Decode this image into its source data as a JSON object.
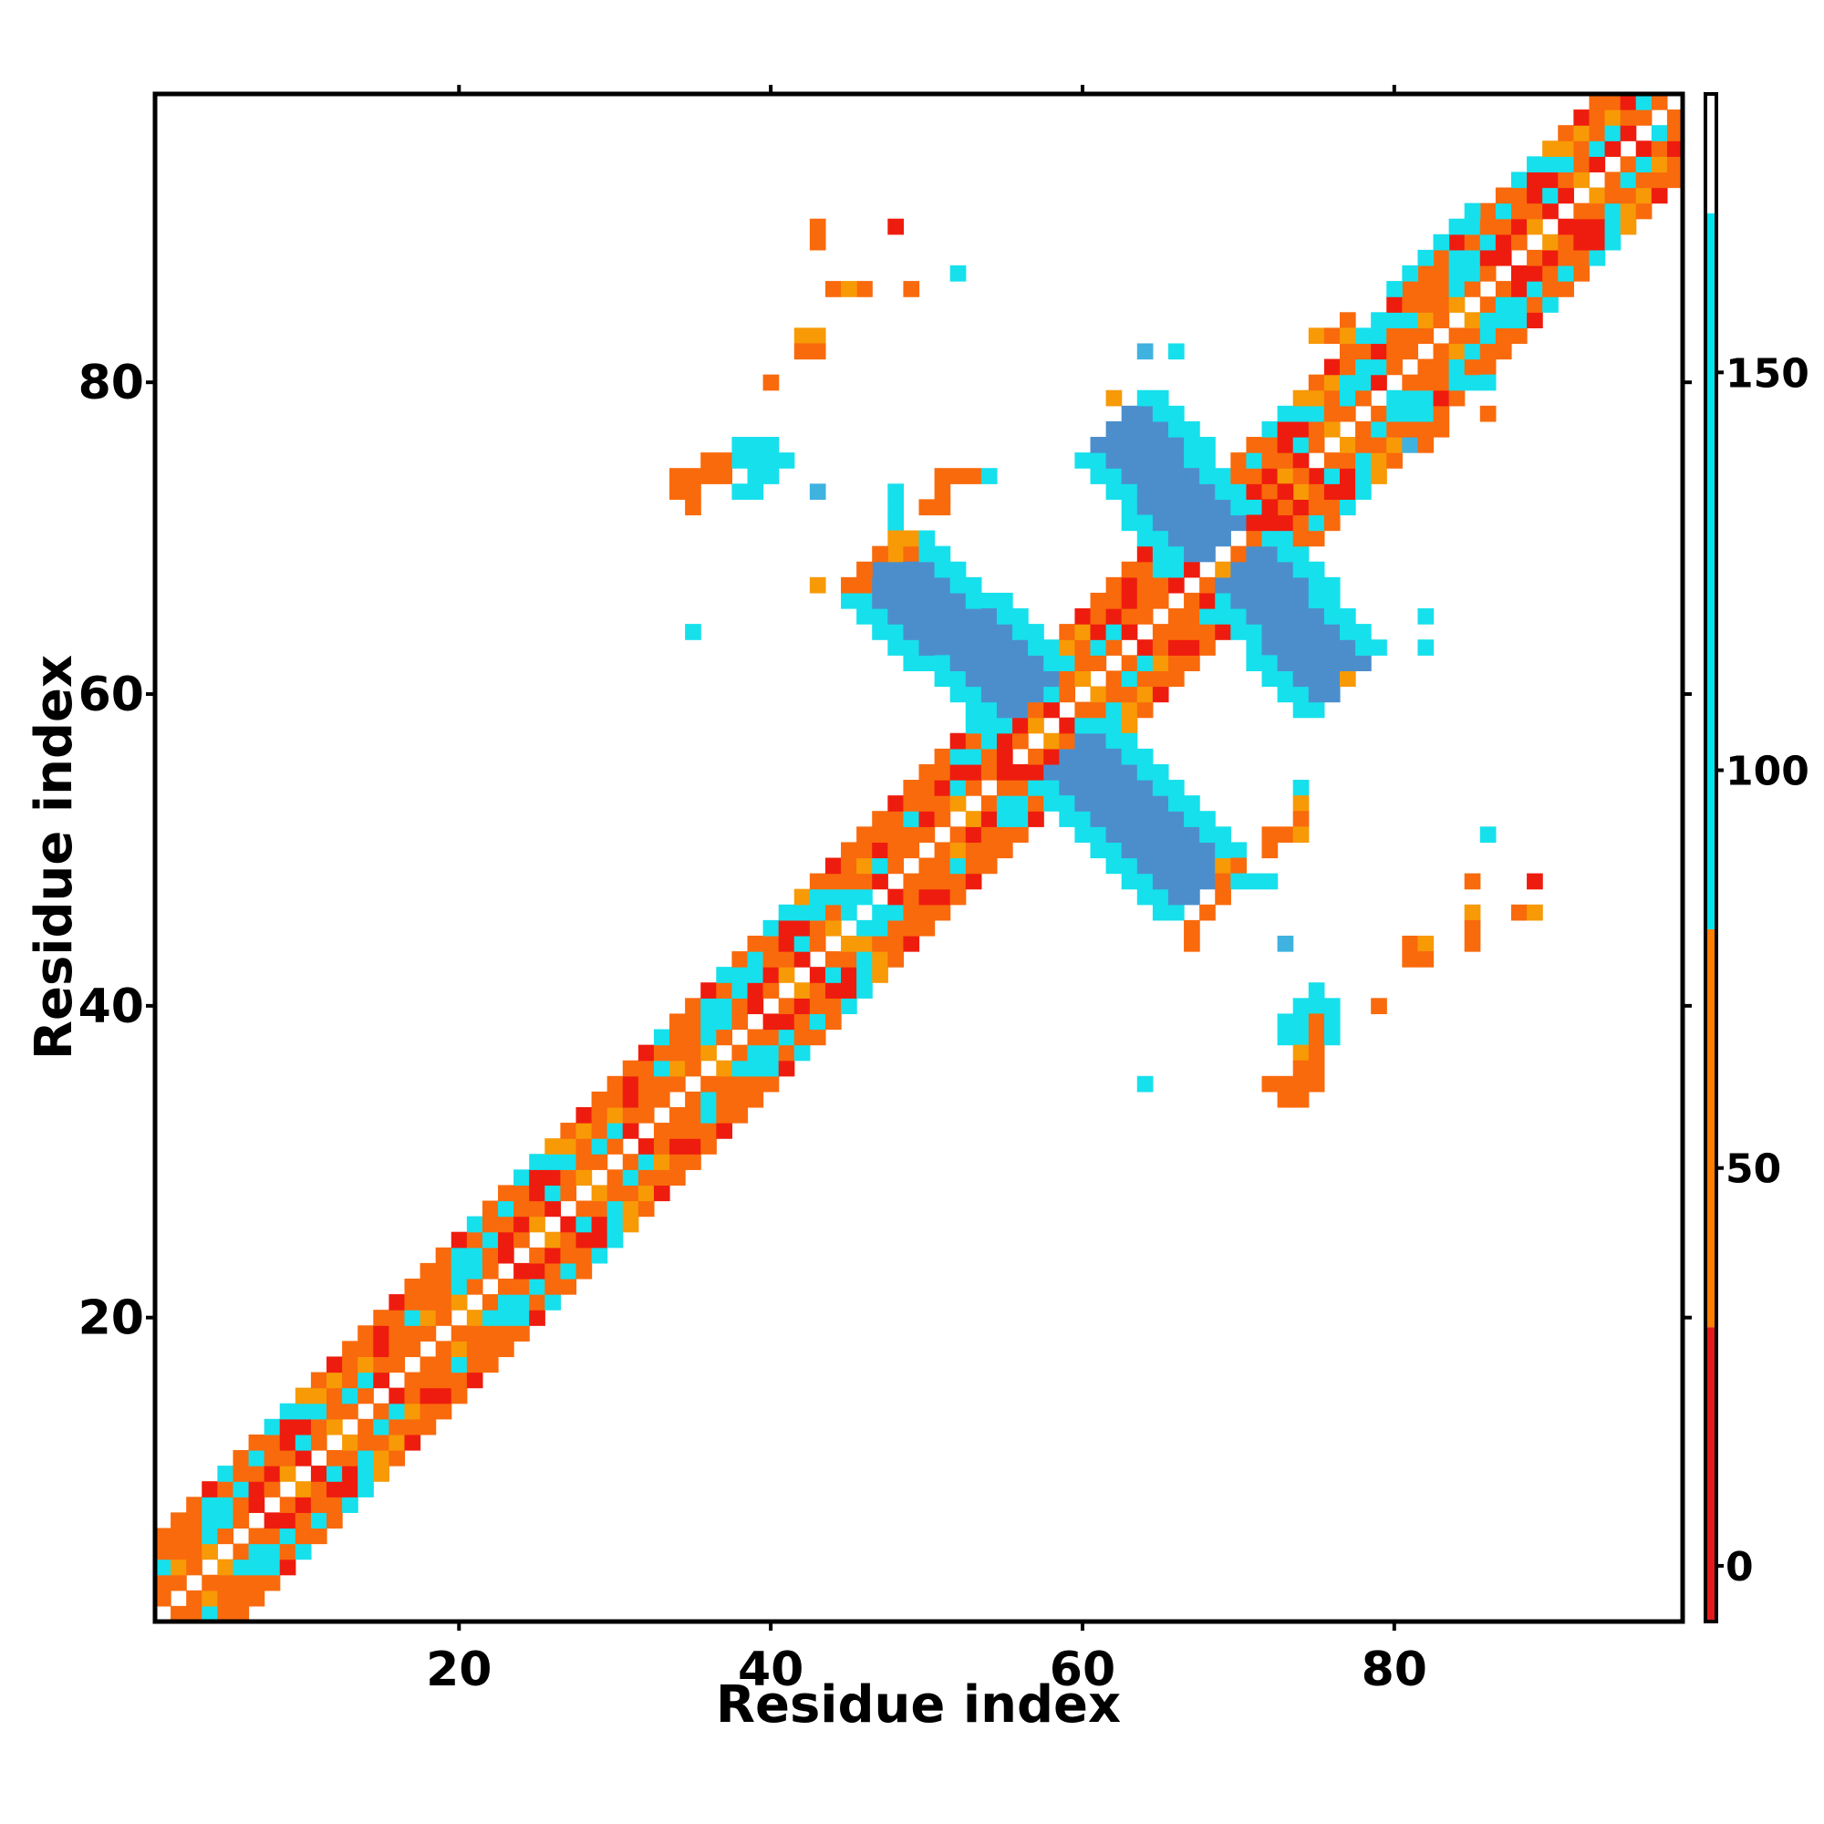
{
  "chart_data": {
    "type": "heatmap",
    "title": "",
    "xlabel": "Residue index",
    "ylabel": "Residue index",
    "xlim": [
      0.5,
      98.5
    ],
    "ylim": [
      0.5,
      98.5
    ],
    "xticks": [
      20,
      40,
      60,
      80
    ],
    "yticks": [
      20,
      40,
      60,
      80
    ],
    "colorbar": {
      "range": [
        -7,
        185
      ],
      "ticks": [
        0,
        50,
        100,
        150
      ],
      "bands": [
        {
          "from": -7,
          "to": 30,
          "color": "#e41a1c"
        },
        {
          "from": 30,
          "to": 80,
          "color": "#ff7f00"
        },
        {
          "from": 80,
          "to": 170,
          "color": "#00e5ee"
        },
        {
          "from": 170,
          "to": 185,
          "color": "#ffffff"
        }
      ]
    },
    "palette": {
      "r": "#ee1c0e",
      "o": "#f96a0c",
      "y": "#f79a06",
      "c": "#16e0ec",
      "b": "#4c8ecc",
      "m": "#3fb2e0"
    },
    "diagonal_band": {
      "x_range": [
        1,
        98
      ],
      "pattern": [
        {
          "offset": 1,
          "colors": "ooyorooyoroorooy"
        },
        {
          "offset": 2,
          "colors": "occoyoorccoocoro"
        },
        {
          "offset": 3,
          "colors": "corcoccorooycoor"
        },
        {
          "offset": 4,
          "colors": "yocooroocyorocoo"
        },
        {
          "offset": 5,
          "colors": "oocroyocoooroocr"
        }
      ]
    },
    "segments": [
      {
        "name": "cross-a-arm",
        "from": [
          47,
          68
        ],
        "to": [
          56,
          60
        ],
        "width": 4,
        "core": "b",
        "edge": "c"
      },
      {
        "name": "cross-a-arm",
        "from": [
          59,
          56
        ],
        "to": [
          67,
          48
        ],
        "width": 4,
        "core": "b",
        "edge": "c"
      },
      {
        "name": "cross-b-arm",
        "from": [
          62,
          77
        ],
        "to": [
          68,
          70
        ],
        "width": 4,
        "core": "b",
        "edge": "c"
      },
      {
        "name": "cross-b-arm",
        "from": [
          70,
          68
        ],
        "to": [
          76,
          61
        ],
        "width": 4,
        "core": "b",
        "edge": "c"
      }
    ],
    "points": [
      [
        43,
        90,
        "o"
      ],
      [
        43,
        89,
        "o"
      ],
      [
        48,
        90,
        "r"
      ],
      [
        46,
        86,
        "o"
      ],
      [
        44,
        86,
        "o"
      ],
      [
        45,
        86,
        "y"
      ],
      [
        49,
        86,
        "o"
      ],
      [
        52,
        87,
        "c"
      ],
      [
        42,
        83,
        "y"
      ],
      [
        43,
        83,
        "y"
      ],
      [
        42,
        82,
        "o"
      ],
      [
        43,
        82,
        "o"
      ],
      [
        40,
        80,
        "o"
      ],
      [
        64,
        82,
        "m"
      ],
      [
        66,
        82,
        "c"
      ],
      [
        62,
        79,
        "y"
      ],
      [
        80,
        79,
        "c"
      ],
      [
        81,
        79,
        "c"
      ],
      [
        82,
        79,
        "c"
      ],
      [
        77,
        84,
        "o"
      ],
      [
        75,
        83,
        "y"
      ],
      [
        76,
        83,
        "o"
      ],
      [
        77,
        83,
        "y"
      ],
      [
        78,
        83,
        "c"
      ],
      [
        79,
        83,
        "c"
      ],
      [
        79,
        84,
        "c"
      ],
      [
        80,
        84,
        "c"
      ],
      [
        77,
        81,
        "o"
      ],
      [
        78,
        81,
        "c"
      ],
      [
        79,
        81,
        "c"
      ],
      [
        77,
        80,
        "c"
      ],
      [
        78,
        80,
        "c"
      ],
      [
        81,
        78,
        "c"
      ],
      [
        82,
        78,
        "c"
      ],
      [
        82,
        77,
        "o"
      ],
      [
        83,
        77,
        "o"
      ],
      [
        81,
        76,
        "m"
      ],
      [
        82,
        76,
        "o"
      ],
      [
        86,
        78,
        "o"
      ],
      [
        34,
        74,
        "o"
      ],
      [
        35,
        74,
        "o"
      ],
      [
        36,
        75,
        "o"
      ],
      [
        37,
        75,
        "o"
      ],
      [
        38,
        75,
        "o"
      ],
      [
        37,
        74,
        "o"
      ],
      [
        36,
        74,
        "o"
      ],
      [
        34,
        73,
        "o"
      ],
      [
        35,
        73,
        "o"
      ],
      [
        35,
        72,
        "o"
      ],
      [
        38,
        76,
        "c"
      ],
      [
        39,
        76,
        "c"
      ],
      [
        40,
        76,
        "c"
      ],
      [
        38,
        75,
        "c"
      ],
      [
        39,
        75,
        "c"
      ],
      [
        40,
        75,
        "c"
      ],
      [
        41,
        75,
        "c"
      ],
      [
        39,
        74,
        "c"
      ],
      [
        40,
        74,
        "c"
      ],
      [
        38,
        73,
        "c"
      ],
      [
        39,
        73,
        "c"
      ],
      [
        43,
        73,
        "m"
      ],
      [
        48,
        73,
        "c"
      ],
      [
        48,
        72,
        "c"
      ],
      [
        48,
        71,
        "c"
      ],
      [
        51,
        74,
        "o"
      ],
      [
        52,
        74,
        "o"
      ],
      [
        53,
        74,
        "o"
      ],
      [
        54,
        74,
        "c"
      ],
      [
        51,
        73,
        "o"
      ],
      [
        50,
        72,
        "o"
      ],
      [
        51,
        72,
        "o"
      ],
      [
        48,
        70,
        "y"
      ],
      [
        49,
        70,
        "y"
      ],
      [
        47,
        69,
        "o"
      ],
      [
        48,
        69,
        "y"
      ],
      [
        49,
        69,
        "o"
      ],
      [
        46,
        68,
        "o"
      ],
      [
        45,
        67,
        "o"
      ],
      [
        46,
        67,
        "o"
      ],
      [
        43,
        67,
        "y"
      ],
      [
        35,
        64,
        "c"
      ],
      [
        82,
        65,
        "c"
      ],
      [
        82,
        63,
        "c"
      ],
      [
        77,
        61,
        "y"
      ],
      [
        74,
        54,
        "c"
      ],
      [
        74,
        53,
        "y"
      ],
      [
        74,
        52,
        "o"
      ],
      [
        72,
        51,
        "o"
      ],
      [
        73,
        51,
        "o"
      ],
      [
        74,
        51,
        "y"
      ],
      [
        72,
        50,
        "o"
      ],
      [
        69,
        49,
        "y"
      ],
      [
        70,
        49,
        "o"
      ],
      [
        69,
        48,
        "o"
      ],
      [
        70,
        48,
        "c"
      ],
      [
        71,
        48,
        "c"
      ],
      [
        72,
        48,
        "c"
      ],
      [
        69,
        47,
        "o"
      ],
      [
        68,
        46,
        "o"
      ],
      [
        67,
        45,
        "o"
      ],
      [
        86,
        51,
        "c"
      ],
      [
        85,
        48,
        "o"
      ],
      [
        89,
        48,
        "r"
      ],
      [
        85,
        46,
        "y"
      ],
      [
        88,
        46,
        "o"
      ],
      [
        89,
        46,
        "y"
      ],
      [
        85,
        45,
        "o"
      ],
      [
        81,
        44,
        "o"
      ],
      [
        82,
        44,
        "y"
      ],
      [
        81,
        43,
        "o"
      ],
      [
        82,
        43,
        "o"
      ],
      [
        85,
        44,
        "o"
      ],
      [
        67,
        44,
        "o"
      ],
      [
        73,
        44,
        "m"
      ],
      [
        75,
        41,
        "c"
      ],
      [
        74,
        40,
        "c"
      ],
      [
        75,
        40,
        "c"
      ],
      [
        76,
        40,
        "c"
      ],
      [
        79,
        40,
        "o"
      ],
      [
        73,
        39,
        "c"
      ],
      [
        74,
        39,
        "c"
      ],
      [
        75,
        39,
        "o"
      ],
      [
        76,
        39,
        "c"
      ],
      [
        73,
        38,
        "c"
      ],
      [
        74,
        38,
        "c"
      ],
      [
        75,
        38,
        "o"
      ],
      [
        76,
        38,
        "c"
      ],
      [
        74,
        37,
        "y"
      ],
      [
        75,
        37,
        "o"
      ],
      [
        74,
        36,
        "o"
      ],
      [
        75,
        36,
        "o"
      ],
      [
        72,
        35,
        "o"
      ],
      [
        73,
        35,
        "o"
      ],
      [
        74,
        35,
        "o"
      ],
      [
        75,
        35,
        "o"
      ],
      [
        73,
        34,
        "o"
      ],
      [
        74,
        34,
        "o"
      ],
      [
        64,
        35,
        "c"
      ],
      [
        43,
        48,
        "o"
      ],
      [
        44,
        48,
        "o"
      ],
      [
        45,
        48,
        "o"
      ],
      [
        46,
        48,
        "o"
      ],
      [
        47,
        49,
        "c"
      ],
      [
        46,
        50,
        "o"
      ],
      [
        47,
        51,
        "o"
      ],
      [
        48,
        51,
        "o"
      ],
      [
        43,
        47,
        "c"
      ],
      [
        44,
        47,
        "c"
      ],
      [
        45,
        47,
        "c"
      ],
      [
        46,
        47,
        "c"
      ],
      [
        45,
        46,
        "c"
      ],
      [
        47,
        46,
        "c"
      ],
      [
        48,
        46,
        "c"
      ],
      [
        49,
        46,
        "o"
      ],
      [
        46,
        45,
        "c"
      ],
      [
        47,
        45,
        "c"
      ],
      [
        48,
        45,
        "o"
      ],
      [
        46,
        44,
        "y"
      ],
      [
        47,
        44,
        "o"
      ],
      [
        48,
        44,
        "o"
      ],
      [
        38,
        43,
        "o"
      ],
      [
        38,
        42,
        "c"
      ],
      [
        39,
        42,
        "c"
      ],
      [
        41,
        40,
        "o"
      ],
      [
        33,
        38,
        "c"
      ],
      [
        36,
        34,
        "c"
      ],
      [
        52,
        55,
        "r"
      ],
      [
        53,
        55,
        "r"
      ],
      [
        51,
        54,
        "r"
      ],
      [
        50,
        52,
        "r"
      ],
      [
        54,
        52,
        "r"
      ],
      [
        53,
        51,
        "r"
      ],
      [
        55,
        55,
        "r"
      ],
      [
        63,
        66,
        "r"
      ],
      [
        62,
        65,
        "r"
      ],
      [
        61,
        64,
        "r"
      ],
      [
        66,
        67,
        "r"
      ],
      [
        67,
        68,
        "r"
      ],
      [
        68,
        66,
        "r"
      ],
      [
        72,
        72,
        "r"
      ],
      [
        73,
        73,
        "r"
      ],
      [
        74,
        74,
        "o"
      ],
      [
        71,
        71,
        "r"
      ],
      [
        86,
        88,
        "r"
      ],
      [
        87,
        89,
        "r"
      ],
      [
        88,
        90,
        "r"
      ],
      [
        93,
        94,
        "r"
      ],
      [
        94,
        95,
        "r"
      ],
      [
        91,
        92,
        "r"
      ],
      [
        88,
        86,
        "r"
      ],
      [
        90,
        88,
        "r"
      ],
      [
        92,
        90,
        "r"
      ],
      [
        80,
        86,
        "c"
      ],
      [
        81,
        87,
        "c"
      ],
      [
        82,
        88,
        "c"
      ],
      [
        83,
        89,
        "c"
      ],
      [
        84,
        90,
        "c"
      ],
      [
        85,
        91,
        "c"
      ],
      [
        86,
        83,
        "c"
      ],
      [
        87,
        84,
        "c"
      ],
      [
        88,
        85,
        "c"
      ],
      [
        84,
        81,
        "c"
      ],
      [
        85,
        82,
        "c"
      ],
      [
        86,
        80,
        "c"
      ],
      [
        85,
        80,
        "c"
      ],
      [
        84,
        80,
        "c"
      ],
      [
        84,
        79,
        "o"
      ],
      [
        83,
        78,
        "o"
      ],
      [
        96,
        98,
        "c"
      ],
      [
        95,
        97,
        "o"
      ],
      [
        97,
        96,
        "c"
      ]
    ]
  }
}
